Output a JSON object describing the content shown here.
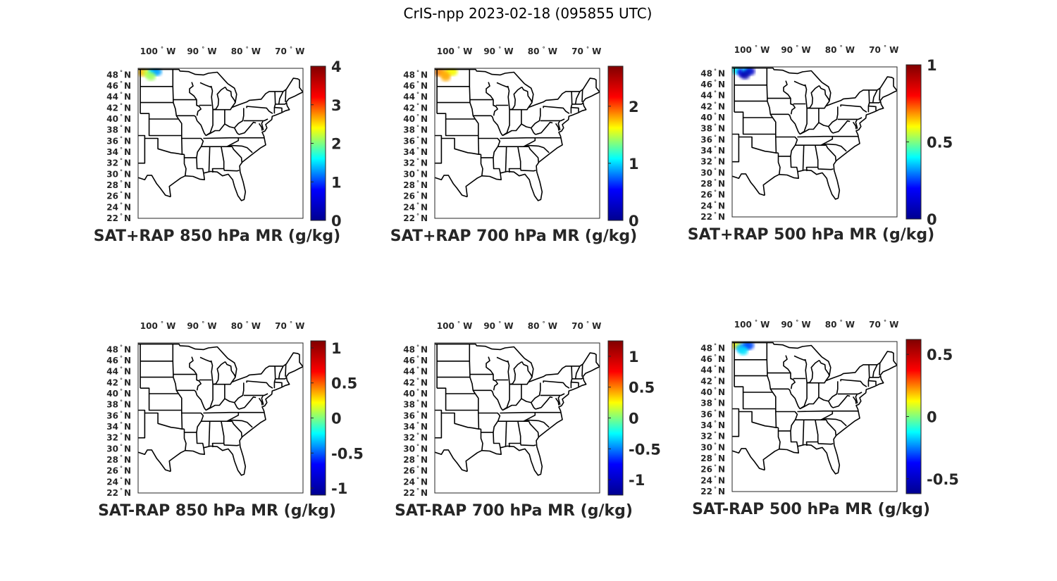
{
  "figure_title": "CrIS-npp 2023-02-18 (095855 UTC)",
  "lon_ticks": [
    -100,
    -90,
    -80,
    -70
  ],
  "lat_ticks": [
    48,
    46,
    44,
    42,
    40,
    38,
    36,
    34,
    32,
    30,
    28,
    26,
    24,
    22
  ],
  "lon_label_suffix": "W",
  "lat_label_suffix": "N",
  "degree_symbol": "°",
  "colormap": "jet",
  "colormap_stops": [
    "#00008f",
    "#0000ff",
    "#00ffff",
    "#ffff00",
    "#ff0000",
    "#800000"
  ],
  "panels": [
    {
      "title": "SAT+RAP 850 hPa MR (g/kg)",
      "colorbar": {
        "min": 0,
        "max": 4,
        "tick_labels": [
          "0",
          "1",
          "2",
          "3",
          "4"
        ],
        "tick_values": [
          0,
          1,
          2,
          3,
          4
        ]
      },
      "data_blobs": [
        {
          "lon": -103.5,
          "lat": 48.5,
          "value": 2.6
        },
        {
          "lon": -102.2,
          "lat": 48.3,
          "value": 2.2
        },
        {
          "lon": -101.0,
          "lat": 48.7,
          "value": 1.5
        },
        {
          "lon": -100.2,
          "lat": 48.6,
          "value": 1.3
        },
        {
          "lon": -101.6,
          "lat": 47.7,
          "value": 2.1
        }
      ]
    },
    {
      "title": "SAT+RAP 700 hPa MR (g/kg)",
      "colorbar": {
        "min": 0,
        "max": 2.7,
        "tick_labels": [
          "0",
          "1",
          "2"
        ],
        "tick_values": [
          0,
          1,
          2
        ]
      },
      "data_blobs": [
        {
          "lon": -103.5,
          "lat": 48.5,
          "value": 1.9
        },
        {
          "lon": -102.2,
          "lat": 48.3,
          "value": 1.8
        },
        {
          "lon": -101.0,
          "lat": 48.7,
          "value": 1.7
        },
        {
          "lon": -100.4,
          "lat": 48.6,
          "value": 1.6
        },
        {
          "lon": -102.0,
          "lat": 47.6,
          "value": 1.8
        }
      ]
    },
    {
      "title": "SAT+RAP 500 hPa MR (g/kg)",
      "colorbar": {
        "min": 0,
        "max": 1,
        "tick_labels": [
          "0",
          "0.5",
          "1"
        ],
        "tick_values": [
          0,
          0.5,
          1
        ]
      },
      "data_blobs": [
        {
          "lon": -103.5,
          "lat": 48.6,
          "value": 0.4
        },
        {
          "lon": -102.3,
          "lat": 48.2,
          "value": 0.15
        },
        {
          "lon": -101.2,
          "lat": 48.6,
          "value": 0.35
        },
        {
          "lon": -100.4,
          "lat": 48.4,
          "value": 0.1
        },
        {
          "lon": -101.6,
          "lat": 47.7,
          "value": 0.05
        }
      ]
    },
    {
      "title": "SAT-RAP 850 hPa MR (g/kg)",
      "colorbar": {
        "min": -1.1,
        "max": 1.1,
        "tick_labels": [
          "-1",
          "-0.5",
          "0",
          "0.5",
          "1"
        ],
        "tick_values": [
          -1,
          -0.5,
          0,
          0.5,
          1
        ]
      },
      "data_blobs": []
    },
    {
      "title": "SAT-RAP 700 hPa MR (g/kg)",
      "colorbar": {
        "min": -1.25,
        "max": 1.25,
        "tick_labels": [
          "-1",
          "-0.5",
          "0",
          "0.5",
          "1"
        ],
        "tick_values": [
          -1,
          -0.5,
          0,
          0.5,
          1
        ]
      },
      "data_blobs": []
    },
    {
      "title": "SAT-RAP 500 hPa MR (g/kg)",
      "colorbar": {
        "min": -0.62,
        "max": 0.62,
        "tick_labels": [
          "-0.5",
          "0",
          "0.5"
        ],
        "tick_values": [
          -0.5,
          0,
          0.5
        ]
      },
      "data_blobs": [
        {
          "lon": -103.6,
          "lat": 48.6,
          "value": 0.12
        },
        {
          "lon": -102.6,
          "lat": 48.0,
          "value": -0.2
        },
        {
          "lon": -101.4,
          "lat": 48.4,
          "value": -0.25
        },
        {
          "lon": -100.6,
          "lat": 48.5,
          "value": -0.3
        },
        {
          "lon": -102.0,
          "lat": 47.5,
          "value": -0.15
        }
      ]
    }
  ]
}
